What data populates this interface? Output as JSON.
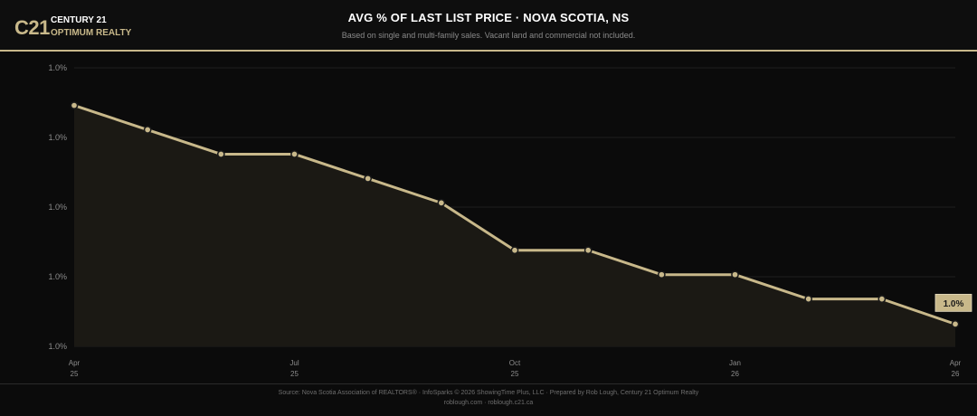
{
  "header": {
    "logo_mark": "C21",
    "logo_line1": "CENTURY 21",
    "logo_line2": "OPTIMUM REALTY",
    "title": "AVG % OF LAST LIST PRICE  ·  NOVA SCOTIA, NS",
    "subtitle": "Based on single and multi-family sales. Vacant land and commercial not included."
  },
  "footer": {
    "line1": "Source: Nova Scotia Association of REALTORS® · InfoSparks © 2026 ShowingTime Plus, LLC · Prepared by Rob Lough, Century 21 Optimum Realty",
    "line2": "roblough.com · roblough.c21.ca"
  },
  "colors": {
    "accent": "#c8b88a",
    "background": "#0b0b0b",
    "area_fill": "#1b1914",
    "grid": "#1f1f1f"
  },
  "chart_data": {
    "type": "area",
    "title": "AVG % OF LAST LIST PRICE  ·  NOVA SCOTIA, NS",
    "xlabel": "",
    "ylabel": "",
    "x": [
      "2025-04",
      "2025-05",
      "2025-06",
      "2025-07",
      "2025-08",
      "2025-09",
      "2025-10",
      "2025-11",
      "2025-12",
      "2026-01",
      "2026-02",
      "2026-03",
      "2026-04"
    ],
    "x_tick_labels": [
      {
        "index": 0,
        "month": "Apr",
        "year": "25"
      },
      {
        "index": 3,
        "month": "Jul",
        "year": "25"
      },
      {
        "index": 6,
        "month": "Oct",
        "year": "25"
      },
      {
        "index": 9,
        "month": "Jan",
        "year": "26"
      },
      {
        "index": 12,
        "month": "Apr",
        "year": "26"
      }
    ],
    "y_tick_labels": [
      "1.0%",
      "1.0%",
      "1.0%",
      "1.0%",
      "1.0%"
    ],
    "ylim": [
      0,
      4
    ],
    "series": [
      {
        "values": [
          3.46,
          3.11,
          2.76,
          2.76,
          2.41,
          2.06,
          1.38,
          1.38,
          1.03,
          1.03,
          0.68,
          0.68,
          0.32
        ]
      }
    ],
    "last_value_label": "1.0%",
    "grid": true,
    "legend": "none"
  }
}
